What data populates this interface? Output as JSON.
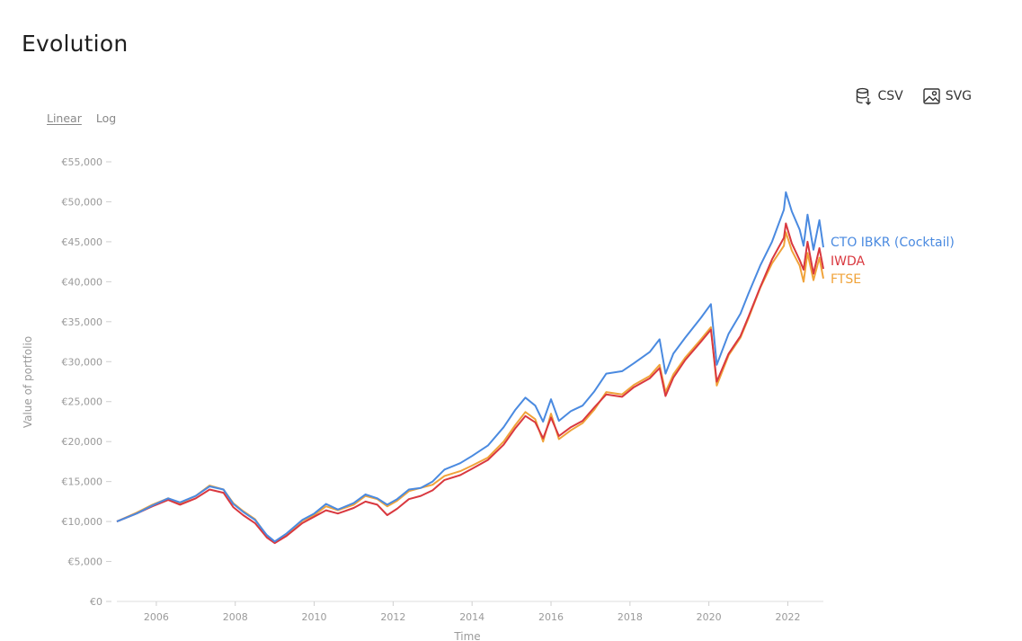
{
  "page": {
    "title": "Evolution"
  },
  "toolbar": {
    "csv_label": "CSV",
    "svg_label": "SVG",
    "csv_icon": "database-download-icon",
    "svg_icon": "image-icon"
  },
  "scale": {
    "linear_label": "Linear",
    "log_label": "Log",
    "selected": "Linear"
  },
  "chart_data": {
    "type": "line",
    "title": "",
    "xlabel": "Time",
    "ylabel": "Value of portfolio",
    "xlim": [
      2005.0,
      2022.9
    ],
    "ylim": [
      0,
      55000
    ],
    "x_ticks": [
      2006,
      2008,
      2010,
      2012,
      2014,
      2016,
      2018,
      2020,
      2022
    ],
    "x_tick_labels": [
      "2006",
      "2008",
      "2010",
      "2012",
      "2014",
      "2016",
      "2018",
      "2020",
      "2022"
    ],
    "y_ticks": [
      0,
      5000,
      10000,
      15000,
      20000,
      25000,
      30000,
      35000,
      40000,
      45000,
      50000,
      55000
    ],
    "y_tick_labels": [
      "€0",
      "€5,000",
      "€10,000",
      "€15,000",
      "€20,000",
      "€25,000",
      "€30,000",
      "€35,000",
      "€40,000",
      "€45,000",
      "€50,000",
      "€55,000"
    ],
    "grid": false,
    "legend": "end-of-line labels",
    "series": [
      {
        "name": "CTO IBKR (Cocktail)",
        "color": "#4a8ae0",
        "points": [
          [
            2005.0,
            10000
          ],
          [
            2005.5,
            11000
          ],
          [
            2005.9,
            12000
          ],
          [
            2006.3,
            12900
          ],
          [
            2006.6,
            12400
          ],
          [
            2007.0,
            13200
          ],
          [
            2007.35,
            14400
          ],
          [
            2007.7,
            14000
          ],
          [
            2007.95,
            12200
          ],
          [
            2008.2,
            11200
          ],
          [
            2008.5,
            10200
          ],
          [
            2008.8,
            8300
          ],
          [
            2009.0,
            7500
          ],
          [
            2009.3,
            8500
          ],
          [
            2009.7,
            10200
          ],
          [
            2010.0,
            11000
          ],
          [
            2010.3,
            12200
          ],
          [
            2010.6,
            11500
          ],
          [
            2011.0,
            12300
          ],
          [
            2011.3,
            13400
          ],
          [
            2011.6,
            12900
          ],
          [
            2011.85,
            12100
          ],
          [
            2012.1,
            12800
          ],
          [
            2012.4,
            14000
          ],
          [
            2012.7,
            14200
          ],
          [
            2013.0,
            15000
          ],
          [
            2013.3,
            16500
          ],
          [
            2013.7,
            17300
          ],
          [
            2014.0,
            18200
          ],
          [
            2014.4,
            19500
          ],
          [
            2014.8,
            21800
          ],
          [
            2015.1,
            24000
          ],
          [
            2015.35,
            25500
          ],
          [
            2015.6,
            24500
          ],
          [
            2015.8,
            22500
          ],
          [
            2016.0,
            25300
          ],
          [
            2016.2,
            22600
          ],
          [
            2016.5,
            23800
          ],
          [
            2016.8,
            24500
          ],
          [
            2017.1,
            26300
          ],
          [
            2017.4,
            28500
          ],
          [
            2017.8,
            28800
          ],
          [
            2018.1,
            29800
          ],
          [
            2018.5,
            31200
          ],
          [
            2018.75,
            32800
          ],
          [
            2018.9,
            28500
          ],
          [
            2019.1,
            31000
          ],
          [
            2019.4,
            33000
          ],
          [
            2019.8,
            35500
          ],
          [
            2020.05,
            37200
          ],
          [
            2020.2,
            29600
          ],
          [
            2020.5,
            33500
          ],
          [
            2020.8,
            36000
          ],
          [
            2021.0,
            38500
          ],
          [
            2021.3,
            42000
          ],
          [
            2021.6,
            45000
          ],
          [
            2021.9,
            49000
          ],
          [
            2021.95,
            51200
          ],
          [
            2022.1,
            48800
          ],
          [
            2022.3,
            46500
          ],
          [
            2022.4,
            44500
          ],
          [
            2022.5,
            48400
          ],
          [
            2022.65,
            44000
          ],
          [
            2022.8,
            47700
          ],
          [
            2022.9,
            44300
          ]
        ]
      },
      {
        "name": "IWDA",
        "color": "#d9383f",
        "points": [
          [
            2005.0,
            10000
          ],
          [
            2005.5,
            11000
          ],
          [
            2005.9,
            11900
          ],
          [
            2006.3,
            12700
          ],
          [
            2006.6,
            12100
          ],
          [
            2007.0,
            12900
          ],
          [
            2007.35,
            14000
          ],
          [
            2007.7,
            13600
          ],
          [
            2007.95,
            11800
          ],
          [
            2008.2,
            10800
          ],
          [
            2008.5,
            9800
          ],
          [
            2008.8,
            8000
          ],
          [
            2009.0,
            7300
          ],
          [
            2009.3,
            8200
          ],
          [
            2009.7,
            9800
          ],
          [
            2010.0,
            10600
          ],
          [
            2010.3,
            11400
          ],
          [
            2010.6,
            11000
          ],
          [
            2011.0,
            11700
          ],
          [
            2011.3,
            12500
          ],
          [
            2011.6,
            12100
          ],
          [
            2011.85,
            10800
          ],
          [
            2012.1,
            11600
          ],
          [
            2012.4,
            12800
          ],
          [
            2012.7,
            13200
          ],
          [
            2013.0,
            13900
          ],
          [
            2013.3,
            15200
          ],
          [
            2013.7,
            15800
          ],
          [
            2014.0,
            16600
          ],
          [
            2014.4,
            17700
          ],
          [
            2014.8,
            19600
          ],
          [
            2015.1,
            21700
          ],
          [
            2015.35,
            23200
          ],
          [
            2015.6,
            22400
          ],
          [
            2015.8,
            20400
          ],
          [
            2016.0,
            23000
          ],
          [
            2016.2,
            20700
          ],
          [
            2016.5,
            21800
          ],
          [
            2016.8,
            22600
          ],
          [
            2017.1,
            24300
          ],
          [
            2017.4,
            25900
          ],
          [
            2017.8,
            25600
          ],
          [
            2018.1,
            26800
          ],
          [
            2018.5,
            27900
          ],
          [
            2018.75,
            29200
          ],
          [
            2018.9,
            25700
          ],
          [
            2019.1,
            28000
          ],
          [
            2019.4,
            30200
          ],
          [
            2019.8,
            32500
          ],
          [
            2020.05,
            34000
          ],
          [
            2020.2,
            27500
          ],
          [
            2020.5,
            31000
          ],
          [
            2020.8,
            33200
          ],
          [
            2021.0,
            35600
          ],
          [
            2021.3,
            39300
          ],
          [
            2021.6,
            42800
          ],
          [
            2021.9,
            45500
          ],
          [
            2021.95,
            47300
          ],
          [
            2022.1,
            44800
          ],
          [
            2022.3,
            42700
          ],
          [
            2022.4,
            41500
          ],
          [
            2022.5,
            45000
          ],
          [
            2022.65,
            41000
          ],
          [
            2022.8,
            44200
          ],
          [
            2022.9,
            41600
          ]
        ]
      },
      {
        "name": "FTSE",
        "color": "#f0a33a",
        "points": [
          [
            2005.0,
            10000
          ],
          [
            2005.5,
            11100
          ],
          [
            2005.9,
            12100
          ],
          [
            2006.3,
            12900
          ],
          [
            2006.6,
            12300
          ],
          [
            2007.0,
            13200
          ],
          [
            2007.35,
            14500
          ],
          [
            2007.7,
            14000
          ],
          [
            2007.95,
            12300
          ],
          [
            2008.2,
            11300
          ],
          [
            2008.5,
            10300
          ],
          [
            2008.8,
            8200
          ],
          [
            2009.0,
            7400
          ],
          [
            2009.3,
            8400
          ],
          [
            2009.7,
            10100
          ],
          [
            2010.0,
            10800
          ],
          [
            2010.3,
            11900
          ],
          [
            2010.6,
            11400
          ],
          [
            2011.0,
            12100
          ],
          [
            2011.3,
            13200
          ],
          [
            2011.6,
            12800
          ],
          [
            2011.85,
            11900
          ],
          [
            2012.1,
            12600
          ],
          [
            2012.4,
            13800
          ],
          [
            2012.7,
            14200
          ],
          [
            2013.0,
            14600
          ],
          [
            2013.3,
            15700
          ],
          [
            2013.7,
            16300
          ],
          [
            2014.0,
            17000
          ],
          [
            2014.4,
            18000
          ],
          [
            2014.8,
            20000
          ],
          [
            2015.1,
            22100
          ],
          [
            2015.35,
            23700
          ],
          [
            2015.6,
            22800
          ],
          [
            2015.8,
            20000
          ],
          [
            2016.0,
            23500
          ],
          [
            2016.2,
            20300
          ],
          [
            2016.5,
            21400
          ],
          [
            2016.8,
            22300
          ],
          [
            2017.1,
            24000
          ],
          [
            2017.4,
            26200
          ],
          [
            2017.8,
            25900
          ],
          [
            2018.1,
            27100
          ],
          [
            2018.5,
            28200
          ],
          [
            2018.75,
            29600
          ],
          [
            2018.9,
            26200
          ],
          [
            2019.1,
            28400
          ],
          [
            2019.4,
            30500
          ],
          [
            2019.8,
            32800
          ],
          [
            2020.05,
            34300
          ],
          [
            2020.2,
            27000
          ],
          [
            2020.5,
            30800
          ],
          [
            2020.8,
            33000
          ],
          [
            2021.0,
            35400
          ],
          [
            2021.3,
            39200
          ],
          [
            2021.6,
            42300
          ],
          [
            2021.9,
            44500
          ],
          [
            2021.95,
            46200
          ],
          [
            2022.1,
            43900
          ],
          [
            2022.3,
            42000
          ],
          [
            2022.4,
            40000
          ],
          [
            2022.5,
            43600
          ],
          [
            2022.65,
            40200
          ],
          [
            2022.8,
            43000
          ],
          [
            2022.9,
            40400
          ]
        ]
      }
    ]
  }
}
